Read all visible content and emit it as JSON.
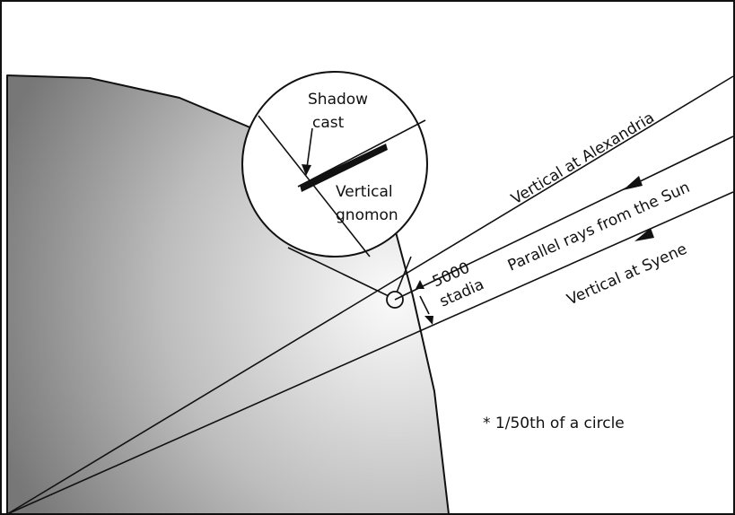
{
  "labels": {
    "shadow_cast": [
      "Shadow",
      "cast"
    ],
    "vertical_gnomon": [
      "Vertical",
      "gnomon"
    ],
    "vertical_alexandria": "Vertical at Alexandria",
    "parallel_rays": "Parallel rays from the Sun",
    "vertical_syene": "Vertical at Syene",
    "distance": [
      "5000",
      "stadia"
    ],
    "angle_note": "* 1/50th of a circle"
  }
}
